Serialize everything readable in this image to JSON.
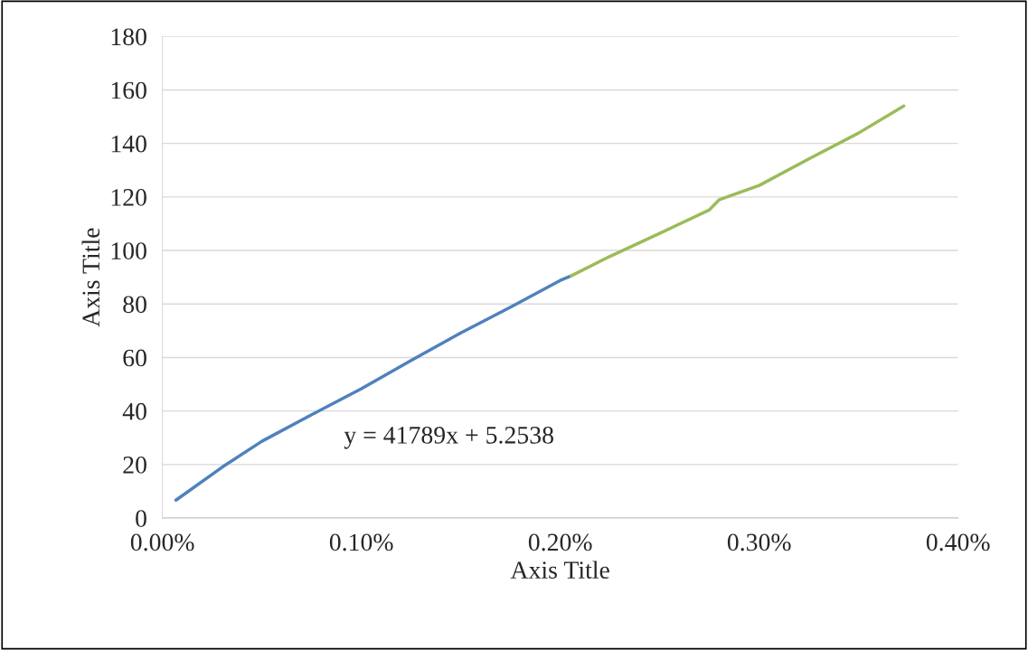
{
  "chart_data": {
    "type": "line",
    "xlabel": "Axis Title",
    "ylabel": "Axis Title",
    "series": [
      {
        "color": "#4f81bd",
        "x": [
          6.8e-05,
          0.0003,
          0.0005,
          0.00075,
          0.001,
          0.00125,
          0.0015,
          0.00175,
          0.002,
          0.002055
        ],
        "values": [
          6.7,
          19.0,
          28.7,
          38.6,
          48.3,
          58.9,
          69.2,
          78.8,
          88.8,
          90.5
        ]
      },
      {
        "color": "#9bbb59",
        "x": [
          0.002055,
          0.00225,
          0.0025,
          0.00275,
          0.0028,
          0.003,
          0.00325,
          0.0035,
          0.003727
        ],
        "values": [
          90.5,
          97.8,
          106.4,
          115.2,
          119.0,
          124.3,
          134.2,
          143.9,
          154.0
        ]
      }
    ],
    "xlim": [
      0,
      0.004
    ],
    "ylim": [
      0,
      180
    ],
    "xticks": [
      {
        "value": 0,
        "label": "0.00%"
      },
      {
        "value": 0.001,
        "label": "0.10%"
      },
      {
        "value": 0.002,
        "label": "0.20%"
      },
      {
        "value": 0.003,
        "label": "0.30%"
      },
      {
        "value": 0.004,
        "label": "0.40%"
      }
    ],
    "yticks": [
      0,
      20,
      40,
      60,
      80,
      100,
      120,
      140,
      160,
      180
    ],
    "grid": "y",
    "marker": "none",
    "line_style": "solid",
    "legend": false,
    "annotations": [
      "y = 41789x + 5.2538"
    ]
  }
}
